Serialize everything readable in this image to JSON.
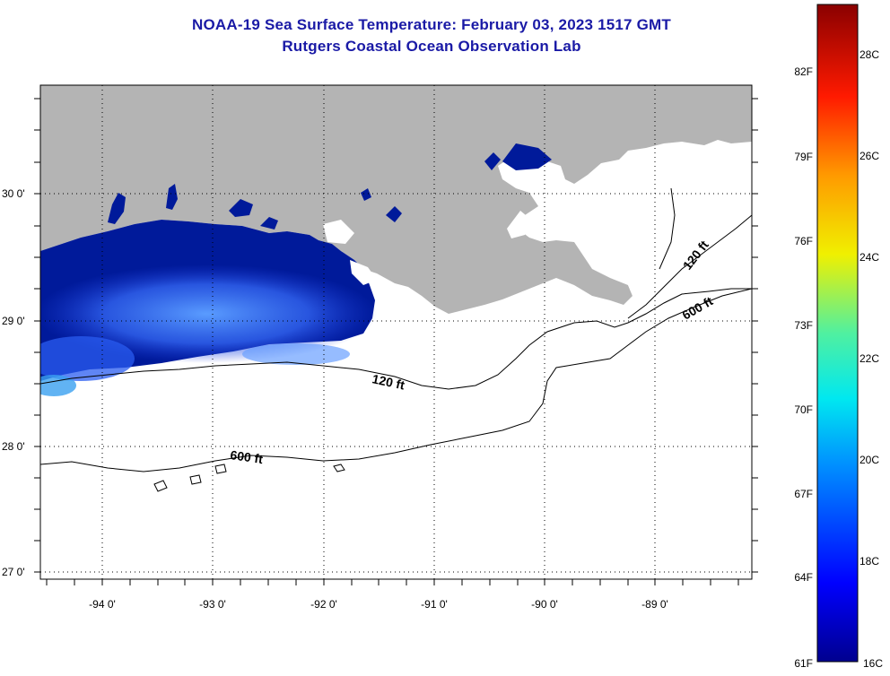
{
  "header": {
    "title": "NOAA-19 Sea Surface Temperature:  February 03, 2023 1517 GMT",
    "subtitle": "Rutgers Coastal Ocean Observation Lab"
  },
  "axes": {
    "lat_labels": [
      "30 0'",
      "29 0'",
      "28 0'",
      "27 0'"
    ],
    "lon_labels": [
      "-94 0'",
      "-93 0'",
      "-92 0'",
      "-91 0'",
      "-90 0'",
      "-89 0'"
    ]
  },
  "contours": {
    "label_120": "120 ft",
    "label_600": "600 ft"
  },
  "colorbar": {
    "fahrenheit": [
      "82F",
      "79F",
      "76F",
      "73F",
      "70F",
      "67F",
      "64F",
      "61F"
    ],
    "celsius": [
      "28C",
      "26C",
      "24C",
      "22C",
      "20C",
      "18C",
      "16C"
    ]
  },
  "colors": {
    "land": "#b4b4b4",
    "title": "#1a1aa6",
    "sst_cold": "#001a9a",
    "sst_mid": "#2a5cf0"
  }
}
